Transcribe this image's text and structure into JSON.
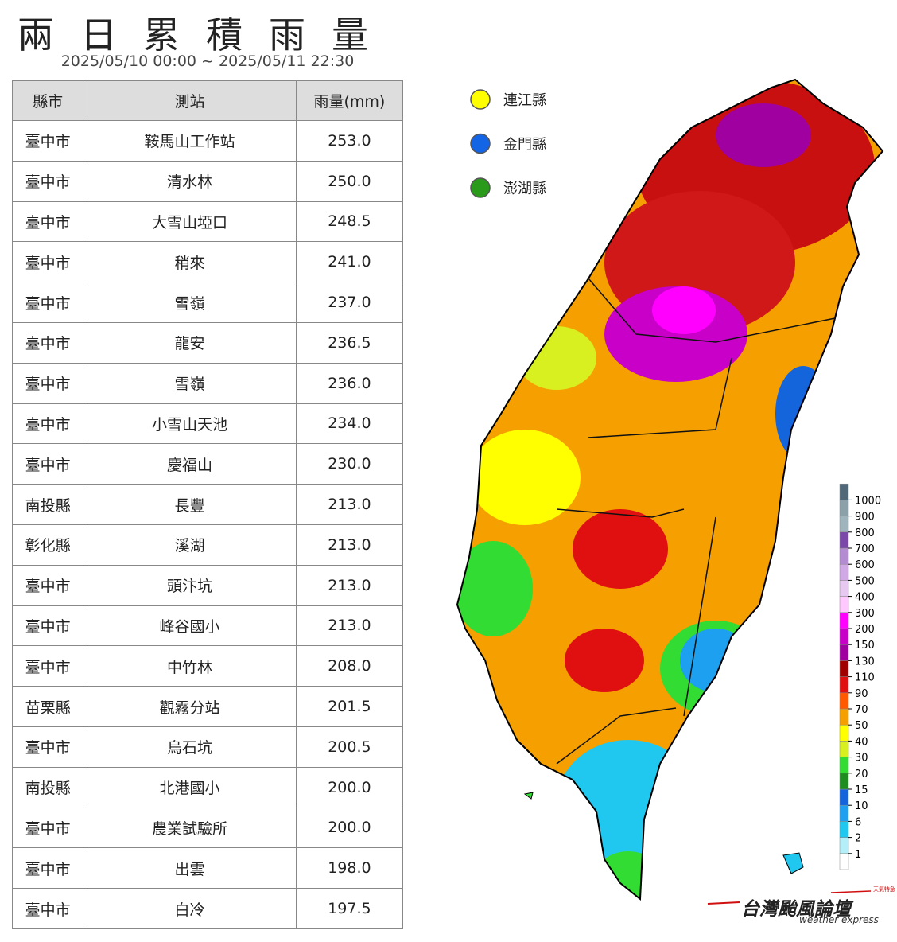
{
  "header": {
    "title": "兩日累積雨量",
    "subtitle": "2025/05/10 00:00 ~ 2025/05/11 22:30"
  },
  "table": {
    "columns": [
      "縣市",
      "測站",
      "雨量(mm)"
    ],
    "rows": [
      [
        "臺中市",
        "鞍馬山工作站",
        "253.0"
      ],
      [
        "臺中市",
        "清水林",
        "250.0"
      ],
      [
        "臺中市",
        "大雪山埡口",
        "248.5"
      ],
      [
        "臺中市",
        "稍來",
        "241.0"
      ],
      [
        "臺中市",
        "雪嶺",
        "237.0"
      ],
      [
        "臺中市",
        "龍安",
        "236.5"
      ],
      [
        "臺中市",
        "雪嶺",
        "236.0"
      ],
      [
        "臺中市",
        "小雪山天池",
        "234.0"
      ],
      [
        "臺中市",
        "慶福山",
        "230.0"
      ],
      [
        "南投縣",
        "長豐",
        "213.0"
      ],
      [
        "彰化縣",
        "溪湖",
        "213.0"
      ],
      [
        "臺中市",
        "頭汴坑",
        "213.0"
      ],
      [
        "臺中市",
        "峰谷國小",
        "213.0"
      ],
      [
        "臺中市",
        "中竹林",
        "208.0"
      ],
      [
        "苗栗縣",
        "觀霧分站",
        "201.5"
      ],
      [
        "臺中市",
        "烏石坑",
        "200.5"
      ],
      [
        "南投縣",
        "北港國小",
        "200.0"
      ],
      [
        "臺中市",
        "農業試驗所",
        "200.0"
      ],
      [
        "臺中市",
        "出雲",
        "198.0"
      ],
      [
        "臺中市",
        "白冷",
        "197.5"
      ]
    ]
  },
  "legend": {
    "items": [
      {
        "label": "連江縣",
        "color": "#ffff00"
      },
      {
        "label": "金門縣",
        "color": "#1464e6"
      },
      {
        "label": "澎湖縣",
        "color": "#2a9a1a"
      }
    ]
  },
  "colorbar": {
    "ticks": [
      1,
      2,
      6,
      10,
      15,
      20,
      30,
      40,
      50,
      70,
      90,
      110,
      130,
      150,
      200,
      300,
      400,
      500,
      600,
      700,
      800,
      900,
      1000
    ],
    "colors": [
      "#ffffff",
      "#b4eef8",
      "#20c8f0",
      "#1ea0f0",
      "#1464dc",
      "#1e8c1e",
      "#32dc32",
      "#d8f020",
      "#ffff00",
      "#f5a000",
      "#ff5a00",
      "#e01010",
      "#a00000",
      "#a000a0",
      "#c800c8",
      "#ff00ff",
      "#ffc8ff",
      "#e6c8f0",
      "#d0a8e6",
      "#b48cd2",
      "#7a48a8",
      "#a0b4be",
      "#8ca0aa",
      "#506878"
    ]
  },
  "logo": {
    "name": "台灣颱風論壇",
    "tagline": "weather express",
    "badge": "天氣特急"
  }
}
